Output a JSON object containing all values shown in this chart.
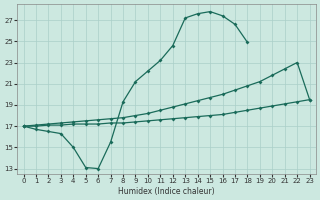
{
  "xlabel": "Humidex (Indice chaleur)",
  "bg_color": "#cce8e0",
  "grid_color": "#aacfc8",
  "line_color": "#1a6b5a",
  "line1_x": [
    0,
    1,
    2,
    3,
    4,
    5,
    6,
    7,
    8,
    9,
    10,
    11,
    12,
    13,
    14,
    15,
    16,
    17,
    18
  ],
  "line1_y": [
    17.0,
    16.7,
    16.5,
    16.3,
    15.0,
    13.1,
    13.0,
    15.5,
    19.3,
    21.2,
    22.2,
    23.2,
    24.6,
    27.2,
    27.6,
    27.8,
    27.4,
    26.6,
    24.9
  ],
  "line2_x": [
    0,
    1,
    2,
    3,
    4,
    5,
    6,
    7,
    8,
    9,
    10,
    11,
    12,
    13,
    14,
    15,
    16,
    17,
    18,
    19,
    20,
    21,
    22,
    23
  ],
  "line2_y": [
    17.0,
    17.1,
    17.2,
    17.3,
    17.4,
    17.5,
    17.6,
    17.7,
    17.8,
    18.0,
    18.2,
    18.5,
    18.8,
    19.1,
    19.4,
    19.7,
    20.0,
    20.4,
    20.8,
    21.2,
    21.8,
    22.4,
    23.0,
    19.5
  ],
  "line3_x": [
    0,
    1,
    2,
    3,
    4,
    5,
    6,
    7,
    8,
    9,
    10,
    11,
    12,
    13,
    14,
    15,
    16,
    17,
    18,
    19,
    20,
    21,
    22,
    23
  ],
  "line3_y": [
    17.0,
    17.0,
    17.1,
    17.1,
    17.2,
    17.2,
    17.2,
    17.3,
    17.3,
    17.4,
    17.5,
    17.6,
    17.7,
    17.8,
    17.9,
    18.0,
    18.1,
    18.3,
    18.5,
    18.7,
    18.9,
    19.1,
    19.3,
    19.5
  ],
  "xlim": [
    -0.5,
    23.5
  ],
  "ylim": [
    12.5,
    28.5
  ],
  "yticks": [
    13,
    15,
    17,
    19,
    21,
    23,
    25,
    27
  ],
  "xticks": [
    0,
    1,
    2,
    3,
    4,
    5,
    6,
    7,
    8,
    9,
    10,
    11,
    12,
    13,
    14,
    15,
    16,
    17,
    18,
    19,
    20,
    21,
    22,
    23
  ]
}
